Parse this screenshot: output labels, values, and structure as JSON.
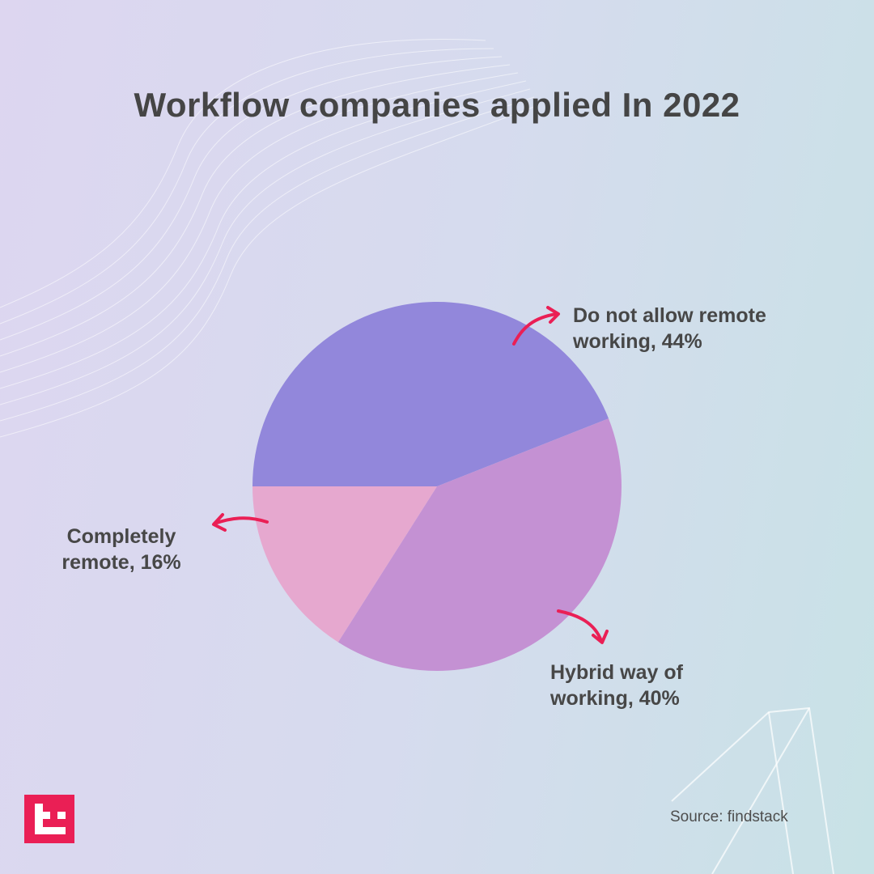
{
  "chart_data": {
    "type": "pie",
    "title": "Workflow companies applied In 2022",
    "values": [
      44,
      40,
      16
    ],
    "value_labels": [
      "Do not allow remote working, 44%",
      "Hybrid way of working, 40%",
      "Completely remote, 16%"
    ],
    "colors": [
      "#9287db",
      "#c491d3",
      "#e6a8cf"
    ],
    "source": "Source: findstack"
  }
}
